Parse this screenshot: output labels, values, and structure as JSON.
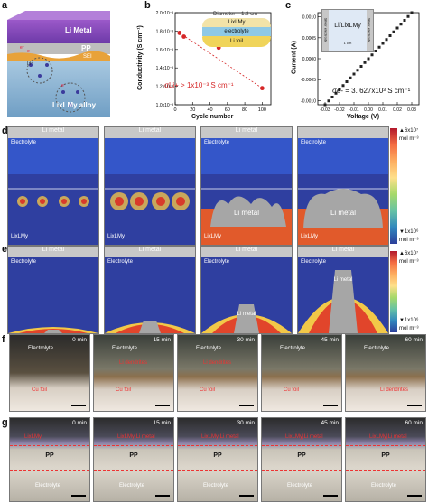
{
  "panels": {
    "a": {
      "label": "a",
      "li_metal": "Li Metal",
      "pp": "PP",
      "sei": "SEI",
      "alloy": "LixLMy alloy",
      "ion": "Li⁺",
      "electron": "e⁻"
    },
    "b": {
      "label": "b",
      "xlabel": "Cycle number",
      "ylabel": "Conductivity (S cm⁻¹)",
      "annotation": "σLi+ > 1x10⁻³ S cm⁻¹",
      "inset_diameter": "Diameter = 1.2 cm",
      "inset_layers": [
        "LixLMy",
        "electrolyte",
        "Li foil"
      ]
    },
    "c": {
      "label": "c",
      "xlabel": "Voltage (V)",
      "ylabel": "Current (A)",
      "annotation": "σe- = 3. 627x10³ S cm⁻¹",
      "inset_title": "Li/LixLMy",
      "inset_left": "Silver electrode",
      "inset_right": "Silver electrode",
      "inset_scale": "1 cm"
    },
    "d": {
      "label": "d",
      "frames": [
        {
          "top": "Li metal",
          "electrolyte": "Electrolyte",
          "bottom": "LixLMy",
          "center": ""
        },
        {
          "top": "Li metal",
          "electrolyte": "",
          "bottom": "LixLMy",
          "center": ""
        },
        {
          "top": "Li metal",
          "electrolyte": "Electrolyte",
          "bottom": "LixLMy",
          "center": "Li metal"
        },
        {
          "top": "",
          "electrolyte": "Electrolyte",
          "bottom": "LixLMy",
          "center": "Li metal"
        }
      ],
      "colorbar": {
        "max": "▲6x10⁷",
        "min": "▼1x10⁶",
        "unit": "mol m⁻³"
      }
    },
    "e": {
      "label": "e",
      "frames": [
        {
          "top": "Li metal",
          "electrolyte": "Electrolyte",
          "center": ""
        },
        {
          "top": "Li metal",
          "electrolyte": "Electrolyte",
          "center": ""
        },
        {
          "top": "Li metal",
          "electrolyte": "Electrolyte",
          "center": "Li metal"
        },
        {
          "top": "Li metal",
          "electrolyte": "Electrolyte",
          "center": "Li metal"
        }
      ],
      "colorbar": {
        "max": "▲6x10⁷",
        "min": "▼1x10⁶",
        "unit": "mol m⁻³"
      }
    },
    "f": {
      "label": "f",
      "frames": [
        {
          "time": "0 min",
          "top": "Electrolyte",
          "bottom": "Cu foil",
          "dendrite": ""
        },
        {
          "time": "15 min",
          "top": "Electrolyte",
          "bottom": "Cu foil",
          "dendrite": "Li dendrites"
        },
        {
          "time": "30 min",
          "top": "Electrolyte",
          "bottom": "Cu foil",
          "dendrite": "Li dendrites"
        },
        {
          "time": "45 min",
          "top": "Electrolyte",
          "bottom": "Cu foil",
          "dendrite": ""
        },
        {
          "time": "60 min",
          "top": "Electrolyte",
          "bottom": "Li dendrites",
          "dendrite": ""
        }
      ]
    },
    "g": {
      "label": "g",
      "frames": [
        {
          "time": "0 min",
          "metal": "LixLMy",
          "pp": "PP",
          "bottom": "Electrolyte"
        },
        {
          "time": "15 min",
          "metal": "LixLMy|Li metal",
          "pp": "PP",
          "bottom": "Electrolyte"
        },
        {
          "time": "30 min",
          "metal": "LixLMy|Li metal",
          "pp": "PP",
          "bottom": "Electrolyte"
        },
        {
          "time": "45 min",
          "metal": "LixLMy|Li metal",
          "pp": "PP",
          "bottom": "Electrolyte"
        },
        {
          "time": "60 min",
          "metal": "LixLMy|Li metal",
          "pp": "PP",
          "bottom": "Electrolyte"
        }
      ]
    }
  },
  "chart_data": [
    {
      "type": "scatter",
      "title": "",
      "xlabel": "Cycle number",
      "ylabel": "Conductivity (S cm⁻¹)",
      "x": [
        5,
        10,
        50,
        100
      ],
      "y": [
        0.00178,
        0.00174,
        0.00162,
        0.00118
      ],
      "xlim": [
        0,
        110
      ],
      "ylim": [
        0.001,
        0.002
      ],
      "xticks": [
        "0",
        "20",
        "40",
        "60",
        "80",
        "100"
      ],
      "yticks": [
        "1.0x10⁻³",
        "1.2x10⁻³",
        "1.4x10⁻³",
        "1.6x10⁻³",
        "1.8x10⁻³",
        "2.0x10⁻³"
      ],
      "color": "#d62728",
      "trend": "dashed linear fit"
    },
    {
      "type": "line",
      "title": "",
      "xlabel": "Voltage (V)",
      "ylabel": "Current (A)",
      "x": [
        -0.03,
        -0.02,
        -0.01,
        0.0,
        0.01,
        0.02,
        0.03
      ],
      "y": [
        -0.0011,
        -0.0007,
        -0.00035,
        0.0,
        0.00035,
        0.0007,
        0.0011
      ],
      "xlim": [
        -0.035,
        0.035
      ],
      "ylim": [
        -0.0011,
        0.0011
      ],
      "xticks": [
        "-0.03",
        "-0.02",
        "-0.01",
        "0.00",
        "0.01",
        "0.02",
        "0.03"
      ],
      "yticks": [
        "-0.0010",
        "-0.0005",
        "0.0000",
        "0.0005",
        "0.0010"
      ],
      "marker": "square",
      "color": "#222222"
    }
  ]
}
